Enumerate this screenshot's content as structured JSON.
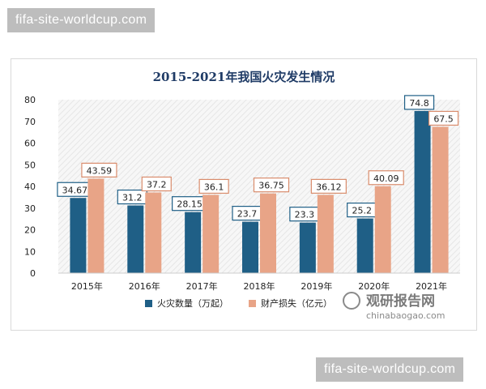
{
  "watermarks": {
    "top": "fifa-site-worldcup.com",
    "bottom": "fifa-site-worldcup.com"
  },
  "logo": {
    "cn": "观研报告网",
    "en": "chinabaogao.com"
  },
  "colors": {
    "series1": "#1f5f86",
    "series2": "#e8a487",
    "title": "#1f3b66",
    "hatch": "#eeeeee"
  },
  "chart_data": {
    "type": "bar",
    "title": "2015-2021年我国火灾发生情况",
    "categories": [
      "2015年",
      "2016年",
      "2017年",
      "2018年",
      "2019年",
      "2020年",
      "2021年"
    ],
    "series": [
      {
        "name": "火灾数量（万起）",
        "values": [
          34.67,
          31.2,
          28.15,
          23.7,
          23.3,
          25.2,
          74.8
        ],
        "labels": [
          "34.67",
          "31.2",
          "28.15",
          "23.7",
          "23.3",
          "25.2",
          "74.8"
        ]
      },
      {
        "name": "财产损失（亿元）",
        "values": [
          43.59,
          37.2,
          36.1,
          36.75,
          36.12,
          40.09,
          67.5
        ],
        "labels": [
          "43.59",
          "37.2",
          "36.1",
          "36.75",
          "36.12",
          "40.09",
          "67.5"
        ]
      }
    ],
    "ylim": [
      0,
      80
    ],
    "yticks": [
      "0",
      "10",
      "20",
      "30",
      "40",
      "50",
      "60",
      "70",
      "80"
    ],
    "grid": false,
    "legend": "bottom",
    "xlabel": "",
    "ylabel": ""
  }
}
